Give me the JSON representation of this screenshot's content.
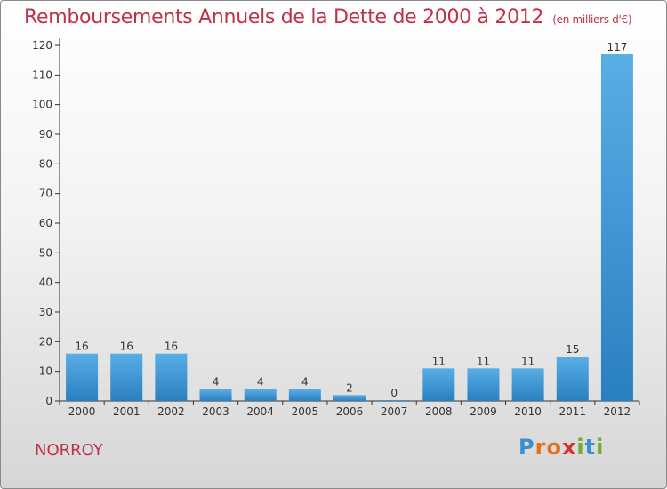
{
  "header": {
    "title": "Remboursements Annuels de la Dette de 2000 à 2012",
    "subtitle": "(en milliers d'€)"
  },
  "footer": {
    "town": "NORROY",
    "logo_letters": [
      "P",
      "r",
      "o",
      "x",
      "i",
      "t",
      "i"
    ],
    "logo_colors": [
      "#3a8fd0",
      "#e3701f",
      "#e3701f",
      "#d6302f",
      "#6fae2f",
      "#3a8fd0",
      "#6fae2f"
    ]
  },
  "colors": {
    "bar_light": "#5aaee6",
    "bar_dark": "#2a7fbf",
    "axis": "#333333",
    "title": "#c0304a"
  },
  "chart_data": {
    "type": "bar",
    "title": "Remboursements Annuels de la Dette de 2000 à 2012",
    "subtitle": "(en milliers d'€)",
    "categories": [
      "2000",
      "2001",
      "2002",
      "2003",
      "2004",
      "2005",
      "2006",
      "2007",
      "2008",
      "2009",
      "2010",
      "2011",
      "2012"
    ],
    "values": [
      16,
      16,
      16,
      4,
      4,
      4,
      2,
      0,
      11,
      11,
      11,
      15,
      117
    ],
    "ylim": [
      0,
      120
    ],
    "yticks": [
      0,
      10,
      20,
      30,
      40,
      50,
      60,
      70,
      80,
      90,
      100,
      110,
      120
    ],
    "grid": false,
    "legend": "none"
  }
}
